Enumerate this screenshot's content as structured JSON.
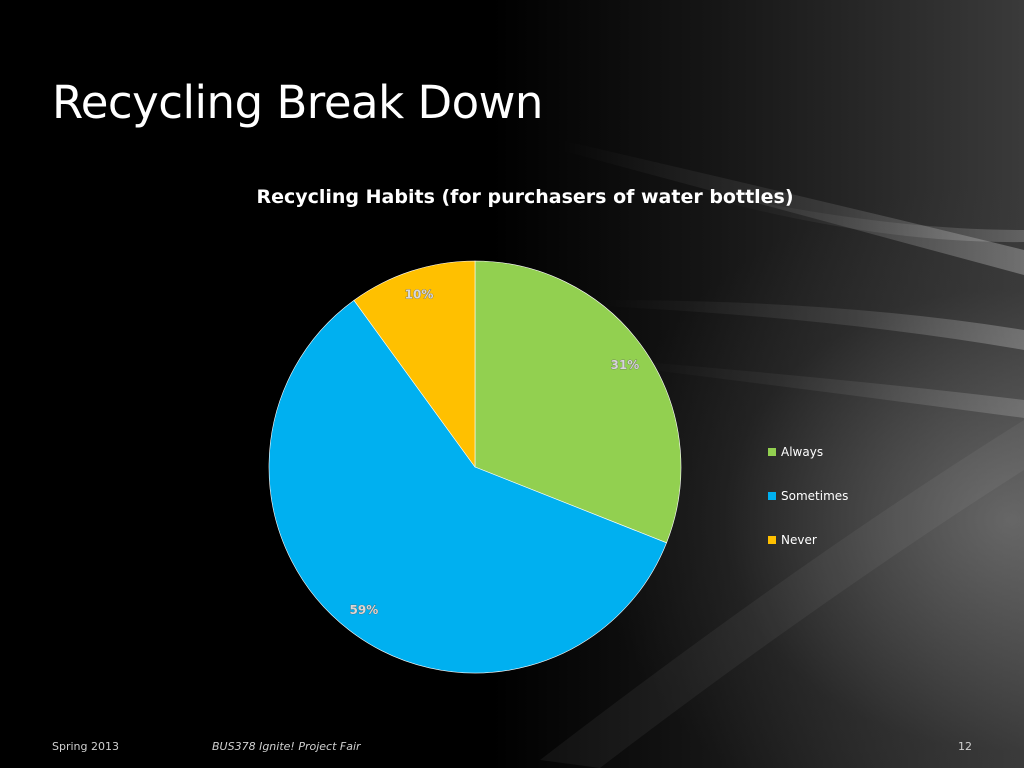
{
  "slide": {
    "title": "Recycling Break Down",
    "footer_date": "Spring 2013",
    "footer_event": "BUS378 Ignite! Project Fair",
    "page_number": "12"
  },
  "chart_data": {
    "type": "pie",
    "title": "Recycling Habits (for  purchasers of water bottles)",
    "categories": [
      "Always",
      "Sometimes",
      "Never"
    ],
    "values": [
      31,
      59,
      10
    ],
    "labels": [
      "31%",
      "59%",
      "10%"
    ],
    "colors": [
      "#92d050",
      "#00b0f0",
      "#ffc000"
    ],
    "start_angle_deg": 0,
    "direction": "clockwise",
    "legend_placement": "right"
  }
}
